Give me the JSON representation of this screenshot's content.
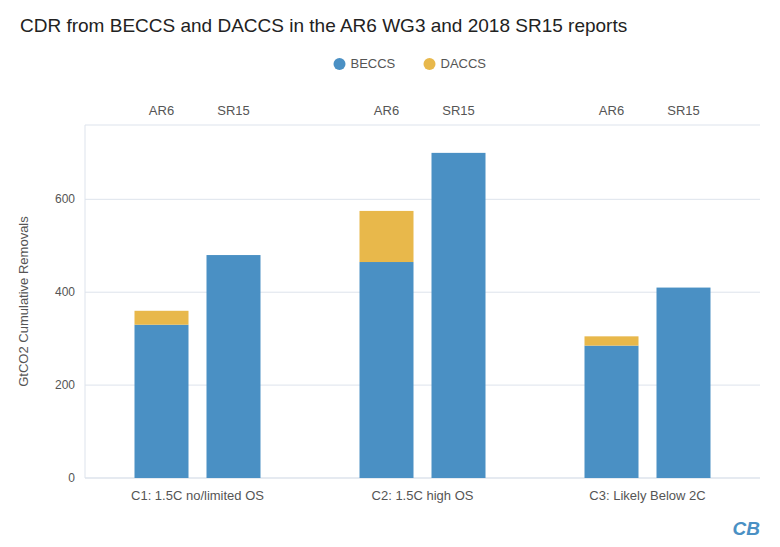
{
  "chart_data": {
    "type": "bar",
    "stacked": true,
    "grid": true,
    "legend": "top",
    "title": "CDR from BECCS and DACCS in the AR6 WG3 and 2018 SR15 reports",
    "ylabel": "GtCO2 Cumulative Removals",
    "groups": [
      "C1: 1.5C no/limited OS",
      "C2: 1.5C high OS",
      "C3: Likely Below 2C"
    ],
    "categories": [
      "AR6",
      "SR15",
      "AR6",
      "SR15",
      "AR6",
      "SR15"
    ],
    "series": [
      {
        "name": "BECCS",
        "color": "#4a90c4",
        "values": [
          330,
          480,
          465,
          700,
          285,
          410
        ]
      },
      {
        "name": "DACCS",
        "color": "#e8b84b",
        "values": [
          30,
          0,
          110,
          0,
          20,
          0
        ]
      }
    ],
    "ylim": [
      0,
      760
    ],
    "yticks": [
      0,
      200,
      400,
      600
    ],
    "annotation": "CB"
  }
}
